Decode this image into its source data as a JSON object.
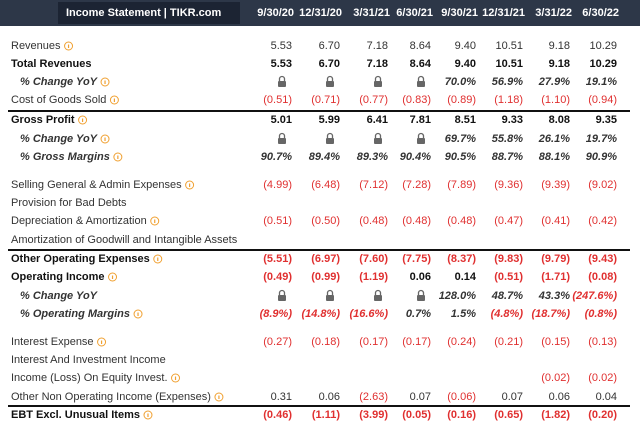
{
  "header": {
    "title": "Income Statement | TIKR.com",
    "columns": [
      "9/30/20",
      "12/31/20",
      "3/31/21",
      "6/30/21",
      "9/30/21",
      "12/31/21",
      "3/31/22",
      "6/30/22"
    ]
  },
  "rows": [
    {
      "label": "Revenues",
      "info": true,
      "values": [
        "5.53",
        "6.70",
        "7.18",
        "8.64",
        "9.40",
        "10.51",
        "9.18",
        "10.29"
      ]
    },
    {
      "label": "Total Revenues",
      "bold": true,
      "values": [
        "5.53",
        "6.70",
        "7.18",
        "8.64",
        "9.40",
        "10.51",
        "9.18",
        "10.29"
      ]
    },
    {
      "label": "% Change YoY",
      "italic": true,
      "info": true,
      "values": [
        null,
        null,
        null,
        null,
        "70.0%",
        "56.9%",
        "27.9%",
        "19.1%"
      ]
    },
    {
      "label": "Cost of Goods Sold",
      "info": true,
      "values": [
        "(0.51)",
        "(0.71)",
        "(0.77)",
        "(0.83)",
        "(0.89)",
        "(1.18)",
        "(1.10)",
        "(0.94)"
      ]
    },
    {
      "label": "Gross Profit",
      "bold": true,
      "border": true,
      "info": true,
      "values": [
        "5.01",
        "5.99",
        "6.41",
        "7.81",
        "8.51",
        "9.33",
        "8.08",
        "9.35"
      ]
    },
    {
      "label": "% Change YoY",
      "italic": true,
      "info": true,
      "values": [
        null,
        null,
        null,
        null,
        "69.7%",
        "55.8%",
        "26.1%",
        "19.7%"
      ]
    },
    {
      "label": "% Gross Margins",
      "italic": true,
      "info": true,
      "values": [
        "90.7%",
        "89.4%",
        "89.3%",
        "90.4%",
        "90.5%",
        "88.7%",
        "88.1%",
        "90.9%"
      ]
    },
    {
      "label": "Selling General & Admin Expenses",
      "info": true,
      "values": [
        "(4.99)",
        "(6.48)",
        "(7.12)",
        "(7.28)",
        "(7.89)",
        "(9.36)",
        "(9.39)",
        "(9.02)"
      ]
    },
    {
      "label": "Provision for Bad Debts",
      "values": [
        null,
        null,
        null,
        null,
        null,
        null,
        null,
        null
      ]
    },
    {
      "label": "Depreciation & Amortization",
      "info": true,
      "values": [
        "(0.51)",
        "(0.50)",
        "(0.48)",
        "(0.48)",
        "(0.48)",
        "(0.47)",
        "(0.41)",
        "(0.42)"
      ]
    },
    {
      "label": "Amortization of Goodwill and Intangible Assets",
      "values": [
        null,
        null,
        null,
        null,
        null,
        null,
        null,
        null
      ]
    },
    {
      "label": "Other Operating Expenses",
      "bold": true,
      "border": true,
      "info": true,
      "values": [
        "(5.51)",
        "(6.97)",
        "(7.60)",
        "(7.75)",
        "(8.37)",
        "(9.83)",
        "(9.79)",
        "(9.43)"
      ]
    },
    {
      "label": "Operating Income",
      "bold": true,
      "info": true,
      "values": [
        "(0.49)",
        "(0.99)",
        "(1.19)",
        "0.06",
        "0.14",
        "(0.51)",
        "(1.71)",
        "(0.08)"
      ]
    },
    {
      "label": "% Change YoY",
      "italic": true,
      "values": [
        null,
        null,
        null,
        null,
        "128.0%",
        "48.7%",
        "43.3%",
        "(247.6%)"
      ]
    },
    {
      "label": "% Operating Margins",
      "italic": true,
      "info": true,
      "values": [
        "(8.9%)",
        "(14.8%)",
        "(16.6%)",
        "0.7%",
        "1.5%",
        "(4.8%)",
        "(18.7%)",
        "(0.8%)"
      ]
    },
    {
      "label": "Interest Expense",
      "info": true,
      "values": [
        "(0.27)",
        "(0.18)",
        "(0.17)",
        "(0.17)",
        "(0.24)",
        "(0.21)",
        "(0.15)",
        "(0.13)"
      ]
    },
    {
      "label": "Interest And Investment Income",
      "values": [
        null,
        null,
        null,
        null,
        null,
        null,
        null,
        null
      ]
    },
    {
      "label": "Income (Loss) On Equity Invest.",
      "info": true,
      "values": [
        null,
        null,
        null,
        null,
        null,
        null,
        "(0.02)",
        "(0.02)"
      ]
    },
    {
      "label": "Other Non Operating Income (Expenses)",
      "info": true,
      "values": [
        "0.31",
        "0.06",
        "(2.63)",
        "0.07",
        "(0.06)",
        "0.07",
        "0.06",
        "0.04"
      ]
    },
    {
      "label": "EBT Excl. Unusual Items",
      "bold": true,
      "border": true,
      "info": true,
      "values": [
        "(0.46)",
        "(1.11)",
        "(3.99)",
        "(0.05)",
        "(0.16)",
        "(0.65)",
        "(1.82)",
        "(0.20)"
      ]
    }
  ]
}
